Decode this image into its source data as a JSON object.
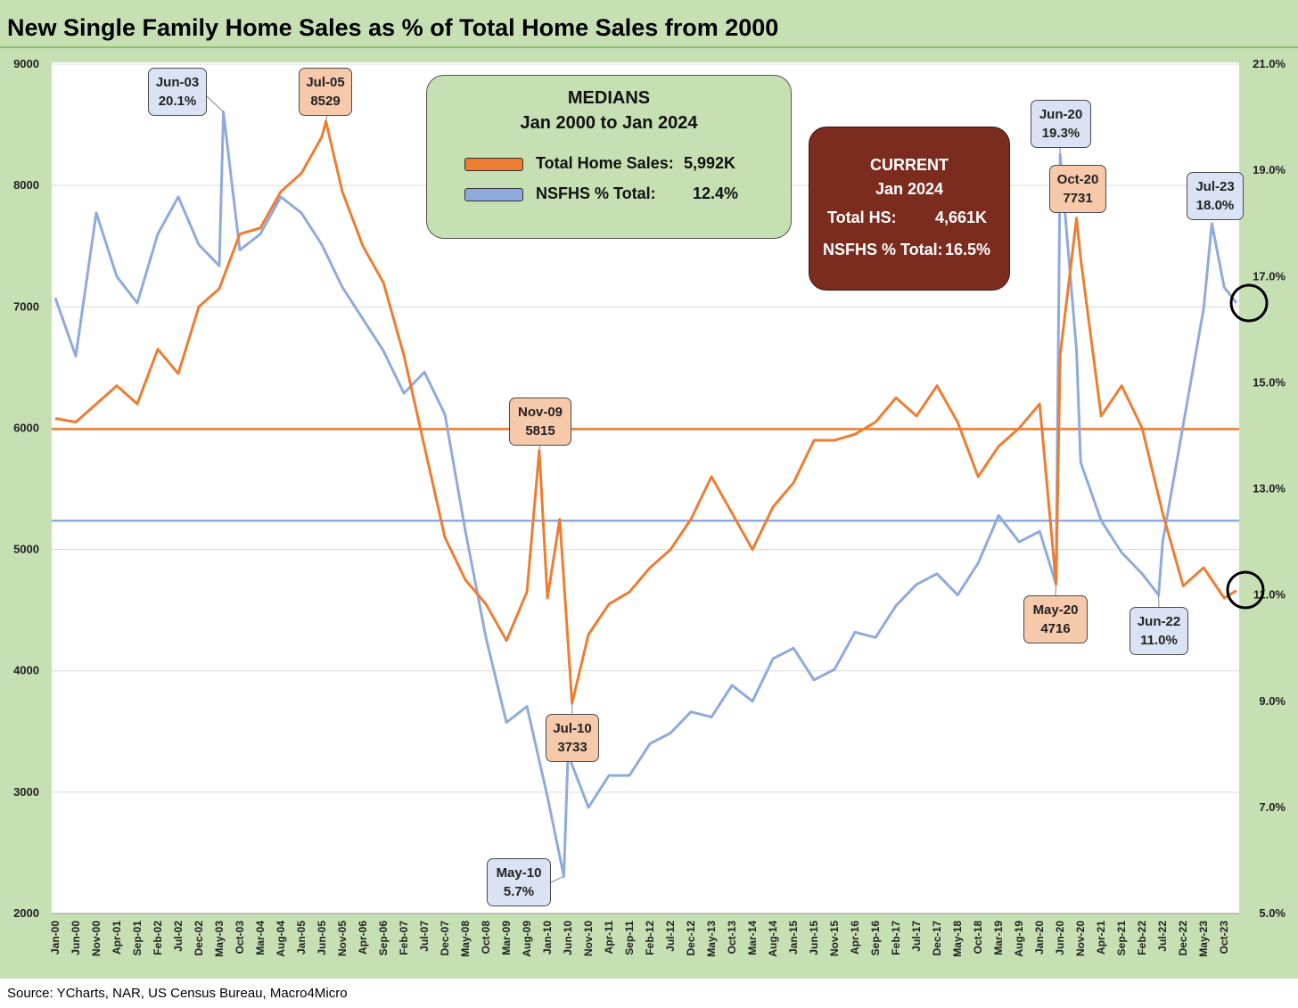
{
  "title": "New Single Family Home Sales as % of Total Home Sales from 2000",
  "source": "Source: YCharts, NAR, US Census Bureau, Macro4Micro",
  "colors": {
    "background": "#c6e0b4",
    "total_sales": "#ed7d31",
    "nsfhs_pct": "#8faadc",
    "current_box": "#7b2c1f"
  },
  "medians_box": {
    "heading1": "MEDIANS",
    "heading2": "Jan 2000 to Jan 2024",
    "rows": [
      {
        "label": "Total Home Sales:",
        "value": "5,992K",
        "color": "#ed7d31"
      },
      {
        "label": "NSFHS % Total:",
        "value": "12.4%",
        "color": "#8faadc"
      }
    ]
  },
  "current_box": {
    "heading1": "CURRENT",
    "heading2": "Jan 2024",
    "row1_label": "Total HS:",
    "row1_value": "4,661K",
    "row2_label": "NSFHS % Total:",
    "row2_value": "16.5%"
  },
  "annotations": {
    "jun03": {
      "label": "Jun-03",
      "value": "20.1%"
    },
    "jul05": {
      "label": "Jul-05",
      "value": "8529"
    },
    "jun20": {
      "label": "Jun-20",
      "value": "19.3%"
    },
    "oct20": {
      "label": "Oct-20",
      "value": "7731"
    },
    "jul23": {
      "label": "Jul-23",
      "value": "18.0%"
    },
    "nov09": {
      "label": "Nov-09",
      "value": "5815"
    },
    "jul10": {
      "label": "Jul-10",
      "value": "3733"
    },
    "may10": {
      "label": "May-10",
      "value": "5.7%"
    },
    "may20": {
      "label": "May-20",
      "value": "4716"
    },
    "jun22": {
      "label": "Jun-22",
      "value": "11.0%"
    }
  },
  "chart_data": {
    "type": "line",
    "title": "New Single Family Home Sales as % of Total Home Sales from 2000",
    "x_start": "Jan-00",
    "x_end": "Jan-24",
    "x_tick_labels": [
      "Jan-00",
      "Jun-00",
      "Nov-00",
      "Apr-01",
      "Sep-01",
      "Feb-02",
      "Jul-02",
      "Dec-02",
      "May-03",
      "Oct-03",
      "Mar-04",
      "Aug-04",
      "Jan-05",
      "Jun-05",
      "Nov-05",
      "Apr-06",
      "Sep-06",
      "Feb-07",
      "Jul-07",
      "Dec-07",
      "May-08",
      "Oct-08",
      "Mar-09",
      "Aug-09",
      "Jan-10",
      "Jun-10",
      "Nov-10",
      "Apr-11",
      "Sep-11",
      "Feb-12",
      "Jul-12",
      "Dec-12",
      "May-13",
      "Oct-13",
      "Mar-14",
      "Aug-14",
      "Jan-15",
      "Jun-15",
      "Nov-15",
      "Apr-16",
      "Sep-16",
      "Feb-17",
      "Jul-17",
      "Dec-17",
      "May-18",
      "Oct-18",
      "Mar-19",
      "Aug-19",
      "Jan-20",
      "Jun-20",
      "Nov-20",
      "Apr-21",
      "Sep-21",
      "Feb-22",
      "Jul-22",
      "Dec-22",
      "May-23",
      "Oct-23"
    ],
    "y_left": {
      "min": 2000,
      "max": 9000,
      "ticks": [
        "2000",
        "3000",
        "4000",
        "5000",
        "6000",
        "7000",
        "8000",
        "9000"
      ]
    },
    "y_right": {
      "min": 5.0,
      "max": 21.0,
      "ticks": [
        "5.0%",
        "7.0%",
        "9.0%",
        "11.0%",
        "13.0%",
        "15.0%",
        "17.0%",
        "19.0%",
        "21.0%"
      ]
    },
    "grid": "horizontal",
    "medians": {
      "total_home_sales": 5992,
      "nsfhs_pct": 12.4
    },
    "series": [
      {
        "name": "Total Home Sales",
        "axis": "left",
        "points": [
          [
            "Jan-00",
            6080
          ],
          [
            "Jun-00",
            6050
          ],
          [
            "Nov-00",
            6200
          ],
          [
            "Apr-01",
            6350
          ],
          [
            "Sep-01",
            6200
          ],
          [
            "Feb-02",
            6650
          ],
          [
            "Jul-02",
            6450
          ],
          [
            "Dec-02",
            7000
          ],
          [
            "May-03",
            7150
          ],
          [
            "Oct-03",
            7600
          ],
          [
            "Mar-04",
            7650
          ],
          [
            "Aug-04",
            7950
          ],
          [
            "Jan-05",
            8100
          ],
          [
            "Jun-05",
            8400
          ],
          [
            "Jul-05",
            8529
          ],
          [
            "Nov-05",
            7950
          ],
          [
            "Apr-06",
            7500
          ],
          [
            "Sep-06",
            7200
          ],
          [
            "Feb-07",
            6600
          ],
          [
            "Jul-07",
            5850
          ],
          [
            "Dec-07",
            5100
          ],
          [
            "May-08",
            4750
          ],
          [
            "Oct-08",
            4550
          ],
          [
            "Mar-09",
            4250
          ],
          [
            "Aug-09",
            4650
          ],
          [
            "Nov-09",
            5815
          ],
          [
            "Jan-10",
            4600
          ],
          [
            "Apr-10",
            5250
          ],
          [
            "Jul-10",
            3733
          ],
          [
            "Nov-10",
            4300
          ],
          [
            "Apr-11",
            4550
          ],
          [
            "Sep-11",
            4650
          ],
          [
            "Feb-12",
            4850
          ],
          [
            "Jul-12",
            5000
          ],
          [
            "Dec-12",
            5250
          ],
          [
            "May-13",
            5600
          ],
          [
            "Oct-13",
            5300
          ],
          [
            "Mar-14",
            5000
          ],
          [
            "Aug-14",
            5350
          ],
          [
            "Jan-15",
            5550
          ],
          [
            "Jun-15",
            5900
          ],
          [
            "Nov-15",
            5900
          ],
          [
            "Apr-16",
            5950
          ],
          [
            "Sep-16",
            6050
          ],
          [
            "Feb-17",
            6250
          ],
          [
            "Jul-17",
            6100
          ],
          [
            "Dec-17",
            6350
          ],
          [
            "May-18",
            6050
          ],
          [
            "Oct-18",
            5600
          ],
          [
            "Mar-19",
            5850
          ],
          [
            "Aug-19",
            6000
          ],
          [
            "Jan-20",
            6200
          ],
          [
            "May-20",
            4716
          ],
          [
            "Jun-20",
            6600
          ],
          [
            "Oct-20",
            7731
          ],
          [
            "Nov-20",
            7400
          ],
          [
            "Apr-21",
            6100
          ],
          [
            "Sep-21",
            6350
          ],
          [
            "Feb-22",
            6000
          ],
          [
            "Jul-22",
            5300
          ],
          [
            "Dec-22",
            4700
          ],
          [
            "May-23",
            4850
          ],
          [
            "Oct-23",
            4600
          ],
          [
            "Jan-24",
            4661
          ]
        ]
      },
      {
        "name": "NSFHS % Total",
        "axis": "right",
        "points": [
          [
            "Jan-00",
            16.6
          ],
          [
            "Jun-00",
            15.5
          ],
          [
            "Nov-00",
            18.2
          ],
          [
            "Apr-01",
            17.0
          ],
          [
            "Sep-01",
            16.5
          ],
          [
            "Feb-02",
            17.8
          ],
          [
            "Jul-02",
            18.5
          ],
          [
            "Dec-02",
            17.6
          ],
          [
            "May-03",
            17.2
          ],
          [
            "Jun-03",
            20.1
          ],
          [
            "Oct-03",
            17.5
          ],
          [
            "Mar-04",
            17.8
          ],
          [
            "Aug-04",
            18.5
          ],
          [
            "Jan-05",
            18.2
          ],
          [
            "Jun-05",
            17.6
          ],
          [
            "Nov-05",
            16.8
          ],
          [
            "Apr-06",
            16.2
          ],
          [
            "Sep-06",
            15.6
          ],
          [
            "Feb-07",
            14.8
          ],
          [
            "Jul-07",
            15.2
          ],
          [
            "Dec-07",
            14.4
          ],
          [
            "May-08",
            12.2
          ],
          [
            "Oct-08",
            10.2
          ],
          [
            "Mar-09",
            8.6
          ],
          [
            "Aug-09",
            8.9
          ],
          [
            "Jan-10",
            7.2
          ],
          [
            "May-10",
            5.7
          ],
          [
            "Jun-10",
            8.0
          ],
          [
            "Nov-10",
            7.0
          ],
          [
            "Apr-11",
            7.6
          ],
          [
            "Sep-11",
            7.6
          ],
          [
            "Feb-12",
            8.2
          ],
          [
            "Jul-12",
            8.4
          ],
          [
            "Dec-12",
            8.8
          ],
          [
            "May-13",
            8.7
          ],
          [
            "Oct-13",
            9.3
          ],
          [
            "Mar-14",
            9.0
          ],
          [
            "Aug-14",
            9.8
          ],
          [
            "Jan-15",
            10.0
          ],
          [
            "Jun-15",
            9.4
          ],
          [
            "Nov-15",
            9.6
          ],
          [
            "Apr-16",
            10.3
          ],
          [
            "Sep-16",
            10.2
          ],
          [
            "Feb-17",
            10.8
          ],
          [
            "Jul-17",
            11.2
          ],
          [
            "Dec-17",
            11.4
          ],
          [
            "May-18",
            11.0
          ],
          [
            "Oct-18",
            11.6
          ],
          [
            "Mar-19",
            12.5
          ],
          [
            "Aug-19",
            12.0
          ],
          [
            "Jan-20",
            12.2
          ],
          [
            "May-20",
            11.2
          ],
          [
            "Jun-20",
            19.3
          ],
          [
            "Oct-20",
            15.6
          ],
          [
            "Nov-20",
            13.5
          ],
          [
            "Apr-21",
            12.4
          ],
          [
            "Sep-21",
            11.8
          ],
          [
            "Feb-22",
            11.4
          ],
          [
            "Jun-22",
            11.0
          ],
          [
            "Jul-22",
            12.0
          ],
          [
            "Dec-22",
            14.2
          ],
          [
            "May-23",
            16.4
          ],
          [
            "Jul-23",
            18.0
          ],
          [
            "Oct-23",
            16.8
          ],
          [
            "Jan-24",
            16.5
          ]
        ]
      }
    ]
  }
}
